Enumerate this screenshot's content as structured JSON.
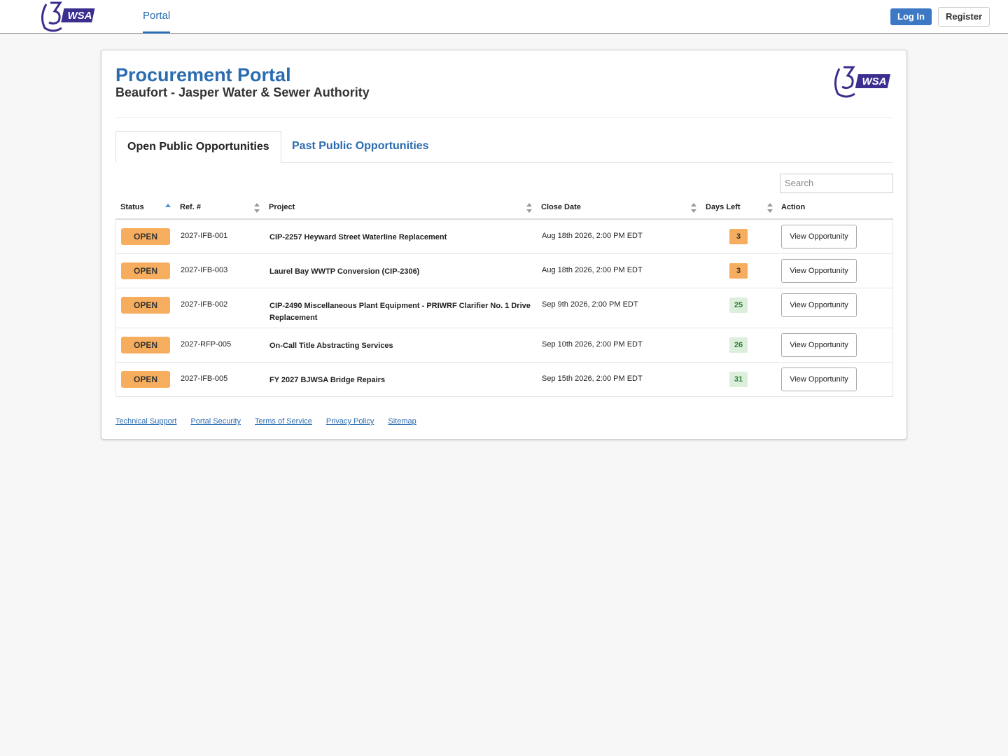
{
  "nav": {
    "portal": "Portal",
    "login": "Log In",
    "register": "Register"
  },
  "header": {
    "logo_text": "WSA",
    "title": "Procurement Portal",
    "subtitle": "Beaufort - Jasper Water & Sewer Authority"
  },
  "tabs": [
    "Open Public Opportunities",
    "Past Public Opportunities"
  ],
  "search_placeholder": "Search",
  "table": {
    "columns": [
      "Status",
      "Ref. #",
      "Project",
      "Close Date",
      "Days Left",
      "Action"
    ],
    "rows": [
      {
        "status": "OPEN",
        "ref": "2027-IFB-001",
        "project": "CIP-2257 Heyward Street Waterline Replacement",
        "close_date": "Aug 18th 2026, 2:00 PM EDT",
        "days_left": 3,
        "days_color": "#f6ad5d",
        "action": "View Opportunity"
      },
      {
        "status": "OPEN",
        "ref": "2027-IFB-003",
        "project": "Laurel Bay WWTP Conversion (CIP-2306)",
        "close_date": "Aug 18th 2026, 2:00 PM EDT",
        "days_left": 3,
        "days_color": "#f6ad5d",
        "action": "View Opportunity"
      },
      {
        "status": "OPEN",
        "ref": "2027-IFB-002",
        "project": "CIP-2490 Miscellaneous Plant Equipment - PRIWRF Clarifier No. 1 Drive Replacement",
        "close_date": "Sep 9th 2026, 2:00 PM EDT",
        "days_left": 25,
        "days_color": "#dcefdc",
        "action": "View Opportunity"
      },
      {
        "status": "OPEN",
        "ref": "2027-RFP-005",
        "project": "On-Call Title Abstracting Services",
        "close_date": "Sep 10th 2026, 2:00 PM EDT",
        "days_left": 26,
        "days_color": "#dcefdc",
        "action": "View Opportunity"
      },
      {
        "status": "OPEN",
        "ref": "2027-IFB-005",
        "project": "FY 2027 BJWSA Bridge Repairs",
        "close_date": "Sep 15th 2026, 2:00 PM EDT",
        "days_left": 31,
        "days_color": "#dcefdc",
        "action": "View Opportunity"
      }
    ]
  },
  "footer_links": [
    "Technical Support",
    "Portal Security",
    "Terms of Service",
    "Privacy Policy",
    "Sitemap"
  ]
}
